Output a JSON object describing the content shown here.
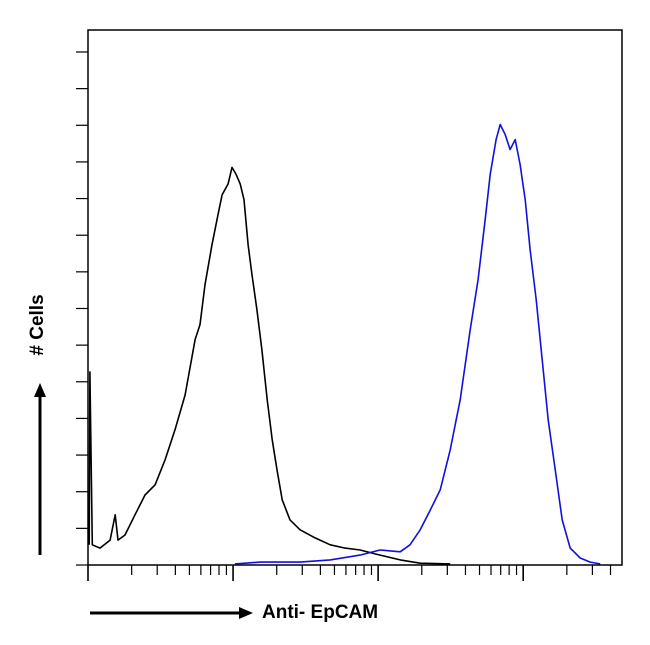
{
  "chart_data": {
    "type": "line",
    "x_label": "Anti- EpCAM",
    "y_label": "# Cells",
    "xscale": "log",
    "xlim": [
      1,
      4800
    ],
    "ylim": [
      0,
      146
    ],
    "xticks": [
      1,
      2,
      3,
      4,
      5,
      6,
      7,
      8,
      9,
      10,
      20,
      30,
      40,
      50,
      60,
      70,
      80,
      90,
      100,
      200,
      300,
      400,
      500,
      600,
      700,
      800,
      900,
      1000,
      2000,
      3000,
      4000
    ],
    "yticks": [
      0,
      10,
      20,
      30,
      40,
      50,
      60,
      70,
      80,
      90,
      100,
      110,
      120,
      130,
      140
    ],
    "series": [
      {
        "color": "#000000",
        "x": [
          1.02,
          1.03,
          1.07,
          1.21,
          1.42,
          1.54,
          1.61,
          1.8,
          2.11,
          2.47,
          2.9,
          3.4,
          3.98,
          4.67,
          5.47,
          5.92,
          6.41,
          7.16,
          7.88,
          8.4,
          9.24,
          9.84,
          10.5,
          11.2,
          11.9,
          12.7,
          13.5,
          14.6,
          15.8,
          17.2,
          18.6,
          20.1,
          21.8,
          24.7,
          29,
          36.8,
          46.7,
          59.2,
          75.1,
          103,
          142,
          195,
          314
        ],
        "values": [
          5.5,
          52.7,
          5.5,
          4.6,
          6.8,
          13.7,
          6.8,
          8.2,
          13.7,
          19.1,
          21.9,
          28.7,
          36.9,
          46.4,
          61.5,
          65.6,
          76.5,
          87.4,
          95.6,
          101,
          104,
          108.5,
          106.6,
          104,
          99.7,
          87.4,
          79.2,
          69.7,
          58.7,
          45.1,
          34.2,
          26,
          17.8,
          12.3,
          9.6,
          7.4,
          5.5,
          4.6,
          4.1,
          2.7,
          1.4,
          0.5,
          0.3
        ]
      },
      {
        "color": "#1010e0",
        "x": [
          10.3,
          15.4,
          29,
          46.7,
          75.1,
          103,
          142,
          166,
          195,
          229,
          268,
          314,
          368,
          431,
          489,
          547,
          592,
          651,
          694,
          751,
          813,
          881,
          953,
          1032,
          1117,
          1230,
          1352,
          1487,
          1662,
          1858,
          2109,
          2472,
          2897,
          3395
        ],
        "values": [
          0.3,
          0.8,
          0.8,
          1.4,
          2.7,
          4.1,
          3.6,
          5.5,
          9.6,
          15,
          20.5,
          31.4,
          45.1,
          64.2,
          77.9,
          94.3,
          106.6,
          116.1,
          120.2,
          117.5,
          113.4,
          116.1,
          109.3,
          99.7,
          86.1,
          72.4,
          56,
          39.6,
          26,
          12.3,
          4.6,
          1.9,
          0.8,
          0.3
        ]
      }
    ]
  }
}
